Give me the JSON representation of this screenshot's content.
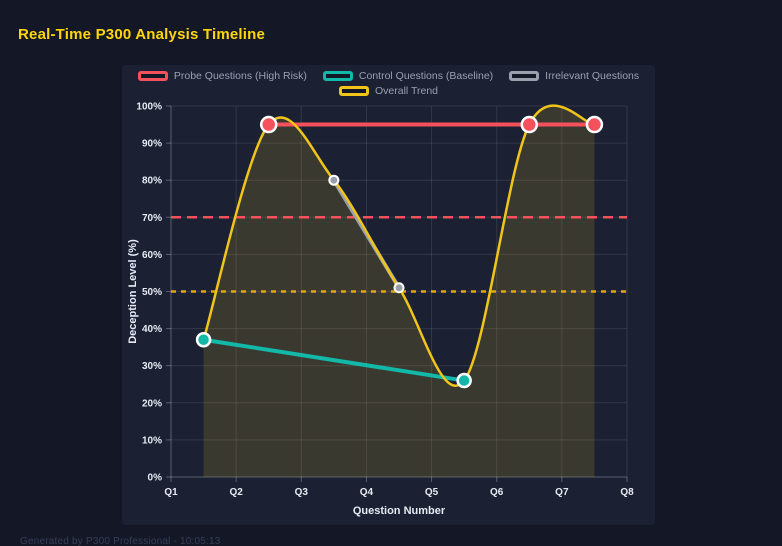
{
  "page": {
    "title": "Real-Time P300 Analysis Timeline",
    "footer": "Generated by P300 Professional - 10:05:13"
  },
  "colors": {
    "page_background": "#141826",
    "card_background": "#1b2133",
    "title": "#ffd60a",
    "grid": "rgba(255,255,255,0.10)",
    "axis": "rgba(255,255,255,0.28)",
    "tick_text": "#e7eaf3",
    "legend_text": "#9aa0b2",
    "footer_text": "#353e58"
  },
  "chart_data": {
    "type": "line",
    "title": "Real-Time P300 Analysis Timeline",
    "xlabel": "Question Number",
    "ylabel": "Deception Level (%)",
    "x_ticks": [
      "Q1",
      "Q2",
      "Q3",
      "Q4",
      "Q5",
      "Q6",
      "Q7",
      "Q8"
    ],
    "x_tick_values": [
      1,
      2,
      3,
      4,
      5,
      6,
      7,
      8
    ],
    "x_range": [
      1,
      8
    ],
    "y_ticks": [
      "0%",
      "10%",
      "20%",
      "30%",
      "40%",
      "50%",
      "60%",
      "70%",
      "80%",
      "90%",
      "100%"
    ],
    "y_tick_values": [
      0,
      10,
      20,
      30,
      40,
      50,
      60,
      70,
      80,
      90,
      100
    ],
    "ylim": [
      0,
      100
    ],
    "grid": true,
    "legend_position": "top",
    "series": [
      {
        "name": "Probe Questions (High Risk)",
        "color": "#f4515d",
        "points": [
          [
            2.5,
            95
          ],
          [
            6.5,
            95
          ],
          [
            7.5,
            95
          ]
        ],
        "line_width": 4,
        "smooth": false,
        "fill": false,
        "draw_points": true,
        "point_radius": 7.5,
        "ring_width": 2.5
      },
      {
        "name": "Control Questions (Baseline)",
        "color": "#12b8a8",
        "points": [
          [
            1.5,
            37
          ],
          [
            5.5,
            26
          ]
        ],
        "line_width": 4,
        "smooth": false,
        "fill": false,
        "draw_points": true,
        "point_radius": 6.5,
        "ring_width": 2.5
      },
      {
        "name": "Irrelevant Questions",
        "color": "#9aa0ab",
        "points": [
          [
            3.5,
            80
          ],
          [
            4.5,
            51
          ]
        ],
        "line_width": 4,
        "smooth": false,
        "fill": false,
        "draw_points": true,
        "point_radius": 4.5,
        "ring_width": 2
      },
      {
        "name": "Overall Trend",
        "color": "#f0c419",
        "points": [
          [
            1.5,
            37
          ],
          [
            2.5,
            95
          ],
          [
            3.5,
            80
          ],
          [
            4.5,
            51
          ],
          [
            5.5,
            26
          ],
          [
            6.5,
            95
          ],
          [
            7.5,
            95
          ]
        ],
        "line_width": 2.5,
        "smooth": true,
        "fill": true,
        "fill_color": "rgba(240,196,25,0.15)",
        "draw_points": false,
        "point_radius": 0,
        "ring_width": 0
      }
    ],
    "thresholds": [
      {
        "y": 70,
        "color": "#f4515d",
        "dash": "10 6",
        "width": 2.5
      },
      {
        "y": 50,
        "color": "#dfa900",
        "dash": "5 5",
        "width": 2.5
      }
    ]
  }
}
